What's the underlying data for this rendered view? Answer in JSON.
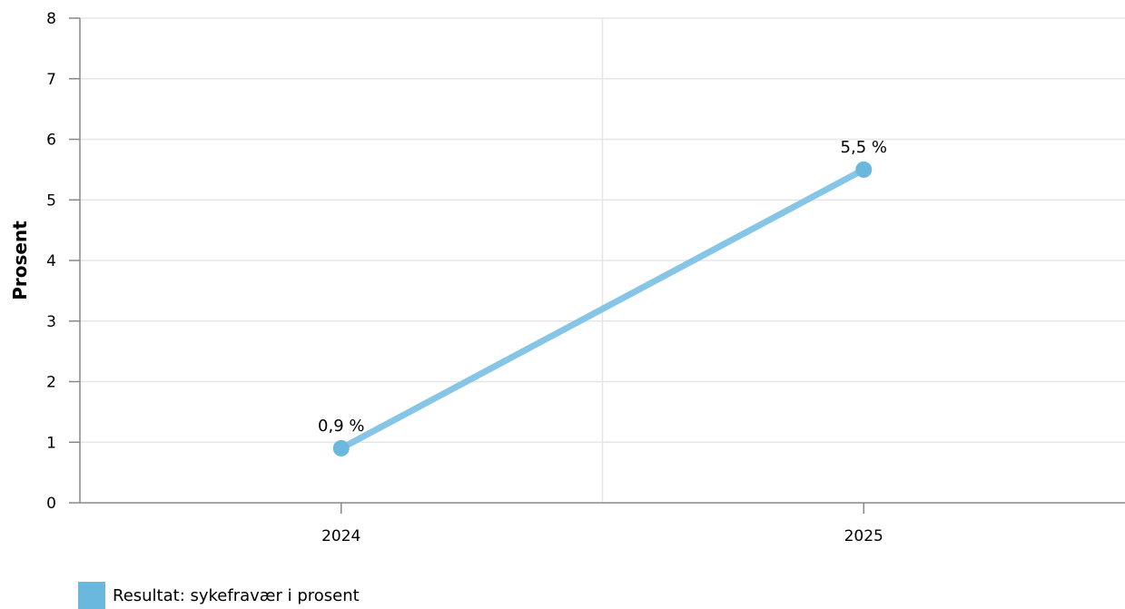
{
  "chart_data": {
    "type": "line",
    "categories": [
      "2024",
      "2025"
    ],
    "series": [
      {
        "name": "Resultat: sykefravær i prosent",
        "values": [
          0.9,
          5.5
        ],
        "labels": [
          "0,9 %",
          "5,5 %"
        ],
        "color": "#6bb8df"
      }
    ],
    "ylabel": "Prosent",
    "xlabel": "",
    "title": "",
    "ylim": [
      0,
      8
    ],
    "yticks": [
      "0",
      "1",
      "2",
      "3",
      "4",
      "5",
      "6",
      "7",
      "8"
    ],
    "grid": true,
    "legend_position": "bottom-left"
  },
  "colors": {
    "line": "#86c5e5",
    "marker": "#6bb8df",
    "grid": "#e6e6e6",
    "axis": "#888888"
  }
}
